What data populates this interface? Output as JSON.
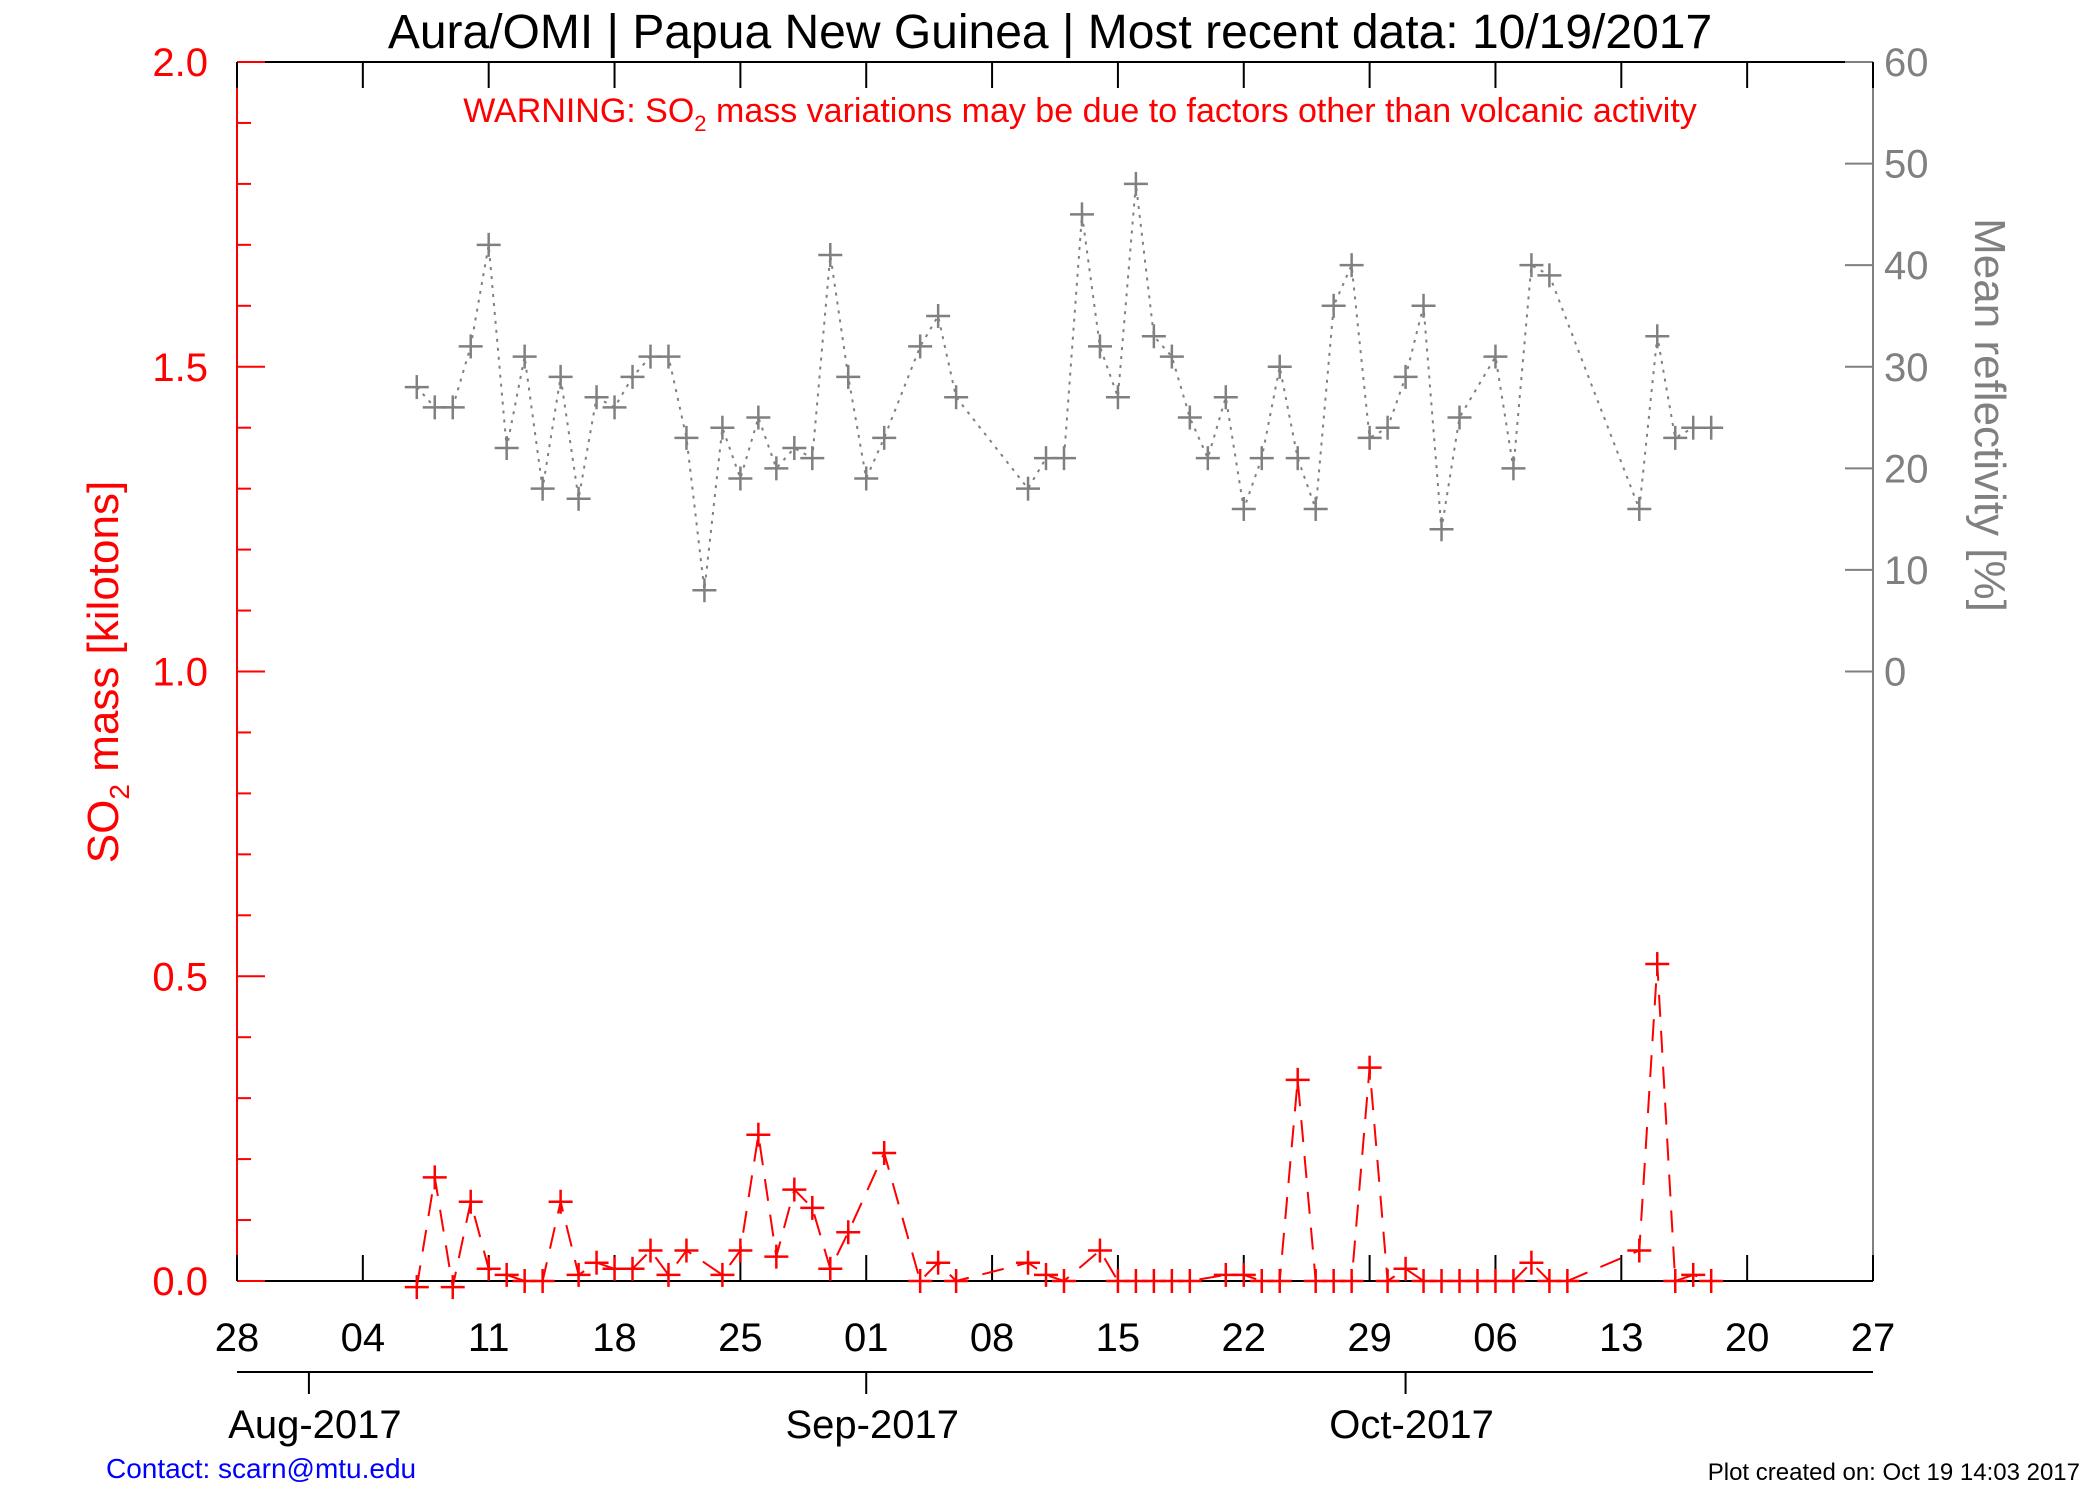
{
  "title": "Aura/OMI | Papua New Guinea | Most recent data: 10/19/2017",
  "warning": {
    "prefix": "WARNING: SO",
    "subscript": "2",
    "suffix": " mass variations may be due to factors other than volcanic activity"
  },
  "left_axis": {
    "label_prefix": "SO",
    "label_subscript": "2",
    "label_suffix": " mass [kilotons]",
    "ticks": [
      "0.0",
      "0.5",
      "1.0",
      "1.5",
      "2.0"
    ]
  },
  "right_axis": {
    "label": "Mean reflectivity [%]",
    "ticks": [
      "0",
      "10",
      "20",
      "30",
      "40",
      "50",
      "60"
    ]
  },
  "x_axis": {
    "day_ticks": [
      "28",
      "04",
      "11",
      "18",
      "25",
      "01",
      "08",
      "15",
      "22",
      "29",
      "06",
      "13",
      "20",
      "27"
    ],
    "month_labels": [
      "Aug-2017",
      "Sep-2017",
      "Oct-2017"
    ]
  },
  "footer": {
    "contact": "Contact: scarn@mtu.edu",
    "created": "Plot created on: Oct 19 14:03 2017"
  },
  "colors": {
    "so2": "#ff0000",
    "reflectivity": "#808080",
    "contact": "#0000ff",
    "text": "#000000"
  },
  "chart_data": {
    "type": "line",
    "x_unit": "date",
    "xlim": [
      "2017-07-28",
      "2017-10-27"
    ],
    "ylim_left": [
      0,
      2
    ],
    "ylim_right": [
      -60,
      60
    ],
    "series": [
      {
        "name": "SO2 mass",
        "axis": "left",
        "style": "dashed",
        "marker": "plus",
        "x": [
          "2017-08-07",
          "2017-08-08",
          "2017-08-09",
          "2017-08-10",
          "2017-08-11",
          "2017-08-12",
          "2017-08-13",
          "2017-08-14",
          "2017-08-15",
          "2017-08-16",
          "2017-08-17",
          "2017-08-18",
          "2017-08-19",
          "2017-08-20",
          "2017-08-21",
          "2017-08-22",
          "2017-08-24",
          "2017-08-25",
          "2017-08-26",
          "2017-08-27",
          "2017-08-28",
          "2017-08-29",
          "2017-08-30",
          "2017-08-31",
          "2017-09-02",
          "2017-09-04",
          "2017-09-05",
          "2017-09-06",
          "2017-09-10",
          "2017-09-11",
          "2017-09-12",
          "2017-09-14",
          "2017-09-15",
          "2017-09-16",
          "2017-09-17",
          "2017-09-18",
          "2017-09-19",
          "2017-09-21",
          "2017-09-22",
          "2017-09-23",
          "2017-09-24",
          "2017-09-25",
          "2017-09-26",
          "2017-09-27",
          "2017-09-28",
          "2017-09-29",
          "2017-09-30",
          "2017-10-01",
          "2017-10-02",
          "2017-10-03",
          "2017-10-04",
          "2017-10-05",
          "2017-10-06",
          "2017-10-07",
          "2017-10-08",
          "2017-10-09",
          "2017-10-10",
          "2017-10-14",
          "2017-10-15",
          "2017-10-16",
          "2017-10-17",
          "2017-10-18"
        ],
        "values": [
          -0.01,
          0.17,
          -0.01,
          0.13,
          0.02,
          0.01,
          0.0,
          0.0,
          0.13,
          0.01,
          0.03,
          0.02,
          0.02,
          0.05,
          0.01,
          0.05,
          0.01,
          0.05,
          0.24,
          0.04,
          0.15,
          0.12,
          0.02,
          0.08,
          0.21,
          0.0,
          0.03,
          0.0,
          0.03,
          0.01,
          0.0,
          0.05,
          0.0,
          0.0,
          0.0,
          0.0,
          0.0,
          0.01,
          0.01,
          0.0,
          0.0,
          0.33,
          0.0,
          0.0,
          0.0,
          0.35,
          0.0,
          0.02,
          0.0,
          0.0,
          0.0,
          0.0,
          0.0,
          0.0,
          0.03,
          0.0,
          0.0,
          0.05,
          0.52,
          0.0,
          0.01,
          0.0
        ]
      },
      {
        "name": "Mean reflectivity",
        "axis": "right",
        "style": "dotted",
        "marker": "plus",
        "x": [
          "2017-08-07",
          "2017-08-08",
          "2017-08-09",
          "2017-08-10",
          "2017-08-11",
          "2017-08-12",
          "2017-08-13",
          "2017-08-14",
          "2017-08-15",
          "2017-08-16",
          "2017-08-17",
          "2017-08-18",
          "2017-08-19",
          "2017-08-20",
          "2017-08-21",
          "2017-08-22",
          "2017-08-23",
          "2017-08-24",
          "2017-08-25",
          "2017-08-26",
          "2017-08-27",
          "2017-08-28",
          "2017-08-29",
          "2017-08-30",
          "2017-08-31",
          "2017-09-01",
          "2017-09-02",
          "2017-09-04",
          "2017-09-05",
          "2017-09-06",
          "2017-09-10",
          "2017-09-11",
          "2017-09-12",
          "2017-09-13",
          "2017-09-14",
          "2017-09-15",
          "2017-09-16",
          "2017-09-17",
          "2017-09-18",
          "2017-09-19",
          "2017-09-20",
          "2017-09-21",
          "2017-09-22",
          "2017-09-23",
          "2017-09-24",
          "2017-09-25",
          "2017-09-26",
          "2017-09-27",
          "2017-09-28",
          "2017-09-29",
          "2017-09-30",
          "2017-10-01",
          "2017-10-02",
          "2017-10-03",
          "2017-10-04",
          "2017-10-06",
          "2017-10-07",
          "2017-10-08",
          "2017-10-09",
          "2017-10-14",
          "2017-10-15",
          "2017-10-16",
          "2017-10-17",
          "2017-10-18"
        ],
        "values": [
          28,
          26,
          26,
          32,
          42,
          22,
          31,
          18,
          29,
          17,
          27,
          26,
          29,
          31,
          31,
          23,
          8,
          24,
          19,
          25,
          20,
          22,
          21,
          41,
          29,
          19,
          23,
          32,
          35,
          27,
          18,
          21,
          21,
          45,
          32,
          27,
          48,
          33,
          31,
          25,
          21,
          27,
          16,
          21,
          30,
          21,
          16,
          36,
          40,
          23,
          24,
          29,
          36,
          14,
          25,
          31,
          20,
          40,
          39,
          16,
          33,
          23,
          24,
          24
        ]
      }
    ]
  }
}
